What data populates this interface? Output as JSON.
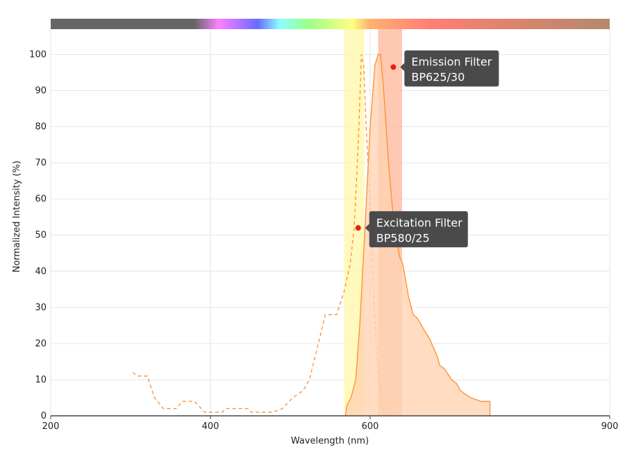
{
  "chart_data": {
    "type": "area",
    "xlabel": "Wavelength (nm)",
    "ylabel": "Normalized Intensity (%)",
    "xlim": [
      200,
      900
    ],
    "ylim": [
      0,
      107
    ],
    "x_ticks": [
      200,
      400,
      600,
      900
    ],
    "y_ticks": [
      0,
      10,
      20,
      30,
      40,
      50,
      60,
      70,
      80,
      90,
      100
    ],
    "grid": true,
    "spectrum_bar": true,
    "filters": [
      {
        "label": "Excitation Filter",
        "name": "BP580/25",
        "range": [
          567.5,
          592.5
        ],
        "color": "#fff7a8",
        "annotation": {
          "x": 585,
          "y": 52
        }
      },
      {
        "label": "Emission Filter",
        "name": "BP625/30",
        "range": [
          610,
          640
        ],
        "color": "#ffb59a",
        "annotation": {
          "x": 629,
          "y": 96.5
        }
      }
    ],
    "series": [
      {
        "style": "dashed",
        "color": "#ff8c2a",
        "x": [
          303,
          308,
          321,
          330,
          341,
          357,
          365,
          380,
          393,
          415,
          419,
          447,
          451,
          478,
          490,
          503,
          516,
          524,
          534,
          544,
          558,
          567,
          575,
          580,
          585,
          589,
          592,
          595,
          600,
          605,
          610,
          615,
          620
        ],
        "y": [
          12,
          11,
          11,
          5,
          2,
          2,
          4,
          4,
          1,
          1,
          2,
          2,
          1,
          1,
          2,
          5,
          7,
          10,
          19,
          28,
          28,
          34,
          42,
          52,
          75,
          100,
          97,
          80,
          59,
          30,
          12,
          3,
          0
        ]
      },
      {
        "style": "solid-filled",
        "color": "#ff8c2a",
        "fill": "#ffd3b3",
        "x": [
          569,
          571,
          576,
          582,
          587,
          593,
          600,
          606,
          610,
          613,
          617,
          623,
          630,
          637,
          641,
          648,
          654,
          659,
          667,
          674,
          684,
          687,
          693,
          702,
          708,
          713,
          719,
          726,
          739,
          750,
          750
        ],
        "y": [
          0,
          3,
          5,
          10,
          25,
          50,
          80,
          97,
          100,
          100,
          90,
          70,
          52,
          44,
          42,
          33,
          28,
          27,
          24,
          21.5,
          16.5,
          14,
          13,
          10,
          9,
          7,
          6,
          5,
          4,
          4,
          0
        ]
      }
    ]
  }
}
